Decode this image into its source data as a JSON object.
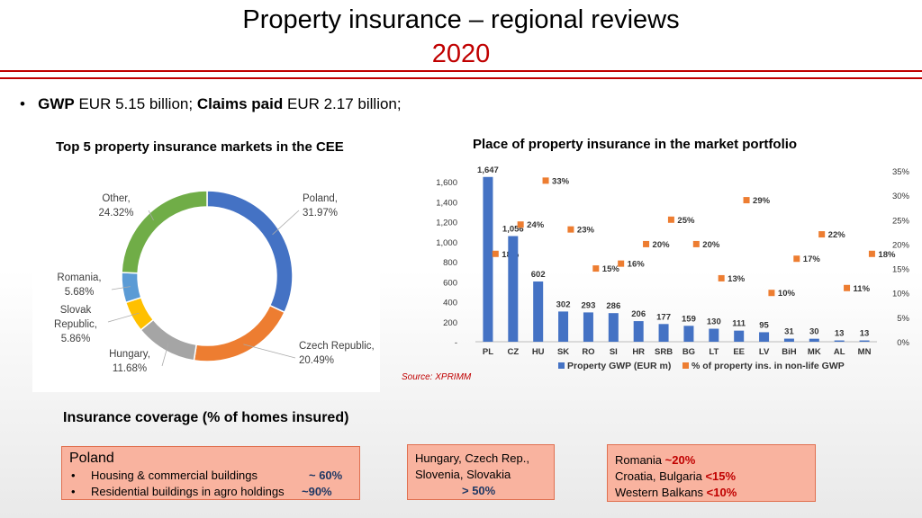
{
  "title_line1": "Property insurance – regional reviews",
  "title_line2": "2020",
  "bullet": {
    "gwp_label": "GWP",
    "gwp_value": "EUR 5.15 billion;",
    "claims_label": "Claims paid",
    "claims_value": "EUR 2.17 billion;"
  },
  "donut_title": "Top 5 property insurance markets in the CEE",
  "bar_title": "Place of property insurance in the market portfolio",
  "source": "Source: XPRIMM",
  "coverage_title": "Insurance coverage (% of homes insured)",
  "boxes": {
    "poland": {
      "title": "Poland",
      "items": [
        {
          "label": "Housing & commercial buildings",
          "value": "~ 60%"
        },
        {
          "label": "Residential buildings in agro holdings",
          "value": "~90%"
        }
      ]
    },
    "hcss": {
      "line1": "Hungary, Czech Rep.,",
      "line2": "Slovenia, Slovakia",
      "value": "> 50%"
    },
    "south": {
      "rows": [
        {
          "label": "Romania",
          "value": "~20%"
        },
        {
          "label": "Croatia, Bulgaria",
          "value": "<15%"
        },
        {
          "label": "Western Balkans",
          "value": "<10%"
        }
      ]
    }
  },
  "chart_data": [
    {
      "type": "pie",
      "subtype": "donut",
      "title": "Top 5 property insurance markets in the CEE",
      "slices": [
        {
          "name": "Poland",
          "value": 31.97,
          "label": "Poland,",
          "pct": "31.97%",
          "color": "#4472c4"
        },
        {
          "name": "Czech Republic",
          "value": 20.49,
          "label": "Czech Republic,",
          "pct": "20.49%",
          "color": "#ed7d31"
        },
        {
          "name": "Hungary",
          "value": 11.68,
          "label": "Hungary,",
          "pct": "11.68%",
          "color": "#a5a5a5"
        },
        {
          "name": "Slovak Republic",
          "value": 5.86,
          "label": "Slovak Republic,",
          "pct": "5.86%",
          "color": "#ffc000"
        },
        {
          "name": "Romania",
          "value": 5.68,
          "label": "Romania,",
          "pct": "5.68%",
          "color": "#5b9bd5"
        },
        {
          "name": "Other",
          "value": 24.32,
          "label": "Other,",
          "pct": "24.32%",
          "color": "#70ad47"
        }
      ]
    },
    {
      "type": "bar",
      "title": "Place of property insurance in the market portfolio",
      "categories": [
        "PL",
        "CZ",
        "HU",
        "SK",
        "RO",
        "SI",
        "HR",
        "SRB",
        "BG",
        "LT",
        "EE",
        "LV",
        "BiH",
        "MK",
        "AL",
        "MN"
      ],
      "series": [
        {
          "name": "Property GWP (EUR m)",
          "type": "bar",
          "axis": "left",
          "color": "#4472c4",
          "values": [
            1647,
            1056,
            602,
            302,
            293,
            286,
            206,
            177,
            159,
            130,
            111,
            95,
            31,
            30,
            13,
            13
          ],
          "labels": [
            "1,647",
            "1,056",
            "602",
            "302",
            "293",
            "286",
            "206",
            "177",
            "159",
            "130",
            "111",
            "95",
            "31",
            "30",
            "13",
            "13"
          ]
        },
        {
          "name": "% of property ins. in non-life GWP",
          "type": "scatter",
          "axis": "right",
          "color": "#ed7d31",
          "values": [
            18,
            24,
            33,
            23,
            15,
            16,
            20,
            25,
            20,
            13,
            29,
            10,
            17,
            22,
            11,
            18
          ],
          "labels": [
            "18%",
            "24%",
            "33%",
            "23%",
            "15%",
            "16%",
            "20%",
            "25%",
            "20%",
            "13%",
            "29%",
            "10%",
            "17%",
            "22%",
            "11%",
            "18%"
          ]
        }
      ],
      "y_left": {
        "ylim": [
          0,
          1600
        ],
        "ticks": [
          "-",
          "200",
          "400",
          "600",
          "800",
          "1,000",
          "1,200",
          "1,400",
          "1,600"
        ]
      },
      "y_right": {
        "ylim": [
          0,
          35
        ],
        "ticks": [
          "0%",
          "5%",
          "10%",
          "15%",
          "20%",
          "25%",
          "30%",
          "35%"
        ]
      },
      "legend": [
        "Property GWP (EUR m)",
        "% of property ins. in non-life GWP"
      ],
      "legend_position": "bottom"
    }
  ]
}
